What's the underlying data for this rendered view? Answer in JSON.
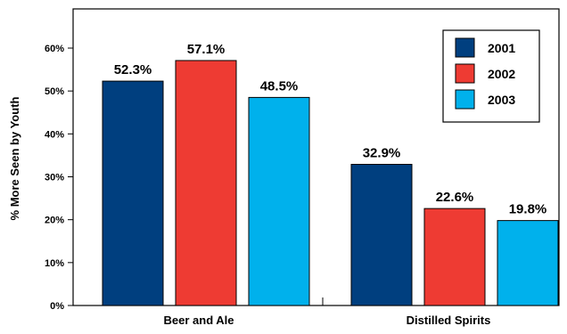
{
  "chart_data": {
    "type": "bar",
    "title": "",
    "xlabel": "",
    "ylabel": "% More Seen by Youth",
    "ylim": [
      0,
      65
    ],
    "yticks": [
      "0%",
      "10%",
      "20%",
      "30%",
      "40%",
      "50%",
      "60%"
    ],
    "ytick_values": [
      0,
      10,
      20,
      30,
      40,
      50,
      60
    ],
    "categories": [
      "Beer and Ale",
      "Distilled Spirits"
    ],
    "series": [
      {
        "name": "2001",
        "color": "#003f7f",
        "values": [
          52.3,
          32.9
        ],
        "labels": [
          "52.3%",
          "32.9%"
        ]
      },
      {
        "name": "2002",
        "color": "#ee3b33",
        "values": [
          57.1,
          22.6
        ],
        "labels": [
          "57.1%",
          "22.6%"
        ]
      },
      {
        "name": "2003",
        "color": "#00b1ec",
        "values": [
          48.5,
          19.8
        ],
        "labels": [
          "48.5%",
          "19.8%"
        ]
      }
    ],
    "legend_position": "top-right",
    "grid": false
  }
}
